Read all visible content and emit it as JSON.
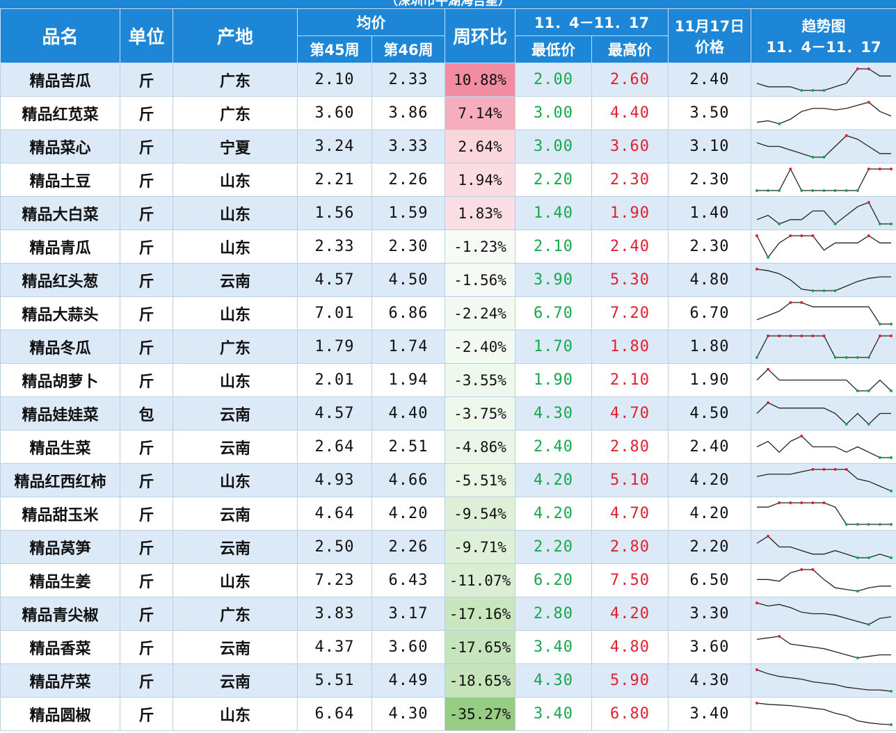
{
  "caption": "（深圳市平湖海吉星）",
  "headers": {
    "name": "品名",
    "unit": "单位",
    "origin": "产地",
    "avg": "均价",
    "week45": "第45周",
    "week46": "第46周",
    "wow": "周环比",
    "range": "11．4－11．17",
    "min": "最低价",
    "max": "最高价",
    "price_line1": "11月17日",
    "price_line2": "价格",
    "trend_line1": "趋势图",
    "trend_line2": "11．4－11．17"
  },
  "colors": {
    "header_bg": "#1e86d6",
    "alt_row": "#dce9f7",
    "low_text": "#13a84a",
    "high_text": "#e0202f",
    "positive_fill": "#f2a6b2",
    "negative_fill": "#a9d39a"
  },
  "rows": [
    {
      "name": "精品苦瓜",
      "unit": "斤",
      "origin": "广东",
      "w45": "2.10",
      "w46": "2.33",
      "wow": "10.88%",
      "wow_value": 10.88,
      "min": "2.00",
      "max": "2.60",
      "price": "2.40",
      "trend": [
        2.2,
        2.1,
        2.1,
        2.1,
        2.0,
        2.0,
        2.0,
        2.1,
        2.2,
        2.6,
        2.6,
        2.4,
        2.4
      ]
    },
    {
      "name": "精品红苋菜",
      "unit": "斤",
      "origin": "广东",
      "w45": "3.60",
      "w46": "3.86",
      "wow": "7.14%",
      "wow_value": 7.14,
      "min": "3.00",
      "max": "4.40",
      "price": "3.50",
      "trend": [
        3.1,
        3.2,
        3.0,
        3.3,
        3.8,
        4.0,
        4.0,
        3.9,
        4.0,
        4.2,
        4.4,
        3.8,
        3.5
      ]
    },
    {
      "name": "精品菜心",
      "unit": "斤",
      "origin": "宁夏",
      "w45": "3.24",
      "w46": "3.33",
      "wow": "2.64%",
      "wow_value": 2.64,
      "min": "3.00",
      "max": "3.60",
      "price": "3.10",
      "trend": [
        3.4,
        3.3,
        3.3,
        3.2,
        3.1,
        3.0,
        3.0,
        3.3,
        3.6,
        3.5,
        3.3,
        3.1,
        3.1
      ]
    },
    {
      "name": "精品土豆",
      "unit": "斤",
      "origin": "山东",
      "w45": "2.21",
      "w46": "2.26",
      "wow": "1.94%",
      "wow_value": 1.94,
      "min": "2.20",
      "max": "2.30",
      "price": "2.30",
      "trend": [
        2.2,
        2.2,
        2.2,
        2.3,
        2.2,
        2.2,
        2.2,
        2.2,
        2.2,
        2.2,
        2.3,
        2.3,
        2.3
      ]
    },
    {
      "name": "精品大白菜",
      "unit": "斤",
      "origin": "山东",
      "w45": "1.56",
      "w46": "1.59",
      "wow": "1.83%",
      "wow_value": 1.83,
      "min": "1.40",
      "max": "1.90",
      "price": "1.40",
      "trend": [
        1.5,
        1.6,
        1.4,
        1.5,
        1.5,
        1.7,
        1.7,
        1.4,
        1.6,
        1.8,
        1.9,
        1.4,
        1.4
      ]
    },
    {
      "name": "精品青瓜",
      "unit": "斤",
      "origin": "山东",
      "w45": "2.33",
      "w46": "2.30",
      "wow": "-1.23%",
      "wow_value": -1.23,
      "min": "2.10",
      "max": "2.40",
      "price": "2.30",
      "trend": [
        2.4,
        2.1,
        2.3,
        2.4,
        2.4,
        2.4,
        2.2,
        2.3,
        2.3,
        2.3,
        2.4,
        2.3,
        2.3
      ]
    },
    {
      "name": "精品红头葱",
      "unit": "斤",
      "origin": "云南",
      "w45": "4.57",
      "w46": "4.50",
      "wow": "-1.56%",
      "wow_value": -1.56,
      "min": "3.90",
      "max": "5.30",
      "price": "4.80",
      "trend": [
        5.3,
        5.2,
        5.0,
        4.6,
        4.0,
        3.9,
        3.9,
        3.9,
        4.2,
        4.5,
        4.7,
        4.8,
        4.8
      ]
    },
    {
      "name": "精品大蒜头",
      "unit": "斤",
      "origin": "山东",
      "w45": "7.01",
      "w46": "6.86",
      "wow": "-2.24%",
      "wow_value": -2.24,
      "min": "6.70",
      "max": "7.20",
      "price": "6.70",
      "trend": [
        6.8,
        6.9,
        7.0,
        7.2,
        7.2,
        7.1,
        7.1,
        7.1,
        7.1,
        7.1,
        7.1,
        6.7,
        6.7
      ]
    },
    {
      "name": "精品冬瓜",
      "unit": "斤",
      "origin": "广东",
      "w45": "1.79",
      "w46": "1.74",
      "wow": "-2.40%",
      "wow_value": -2.4,
      "min": "1.70",
      "max": "1.80",
      "price": "1.80",
      "trend": [
        1.7,
        1.8,
        1.8,
        1.8,
        1.8,
        1.8,
        1.8,
        1.7,
        1.7,
        1.7,
        1.7,
        1.8,
        1.8
      ]
    },
    {
      "name": "精品胡萝卜",
      "unit": "斤",
      "origin": "山东",
      "w45": "2.01",
      "w46": "1.94",
      "wow": "-3.55%",
      "wow_value": -3.55,
      "min": "1.90",
      "max": "2.10",
      "price": "1.90",
      "trend": [
        2.0,
        2.1,
        2.0,
        2.0,
        2.0,
        2.0,
        2.0,
        2.0,
        2.0,
        1.9,
        1.9,
        2.0,
        1.9
      ]
    },
    {
      "name": "精品娃娃菜",
      "unit": "包",
      "origin": "云南",
      "w45": "4.57",
      "w46": "4.40",
      "wow": "-3.75%",
      "wow_value": -3.75,
      "min": "4.30",
      "max": "4.70",
      "price": "4.50",
      "trend": [
        4.5,
        4.7,
        4.6,
        4.6,
        4.6,
        4.6,
        4.6,
        4.5,
        4.3,
        4.5,
        4.3,
        4.5,
        4.5
      ]
    },
    {
      "name": "精品生菜",
      "unit": "斤",
      "origin": "云南",
      "w45": "2.64",
      "w46": "2.51",
      "wow": "-4.86%",
      "wow_value": -4.86,
      "min": "2.40",
      "max": "2.80",
      "price": "2.40",
      "trend": [
        2.6,
        2.7,
        2.5,
        2.7,
        2.8,
        2.6,
        2.6,
        2.6,
        2.5,
        2.6,
        2.5,
        2.4,
        2.4
      ]
    },
    {
      "name": "精品红西红柿",
      "unit": "斤",
      "origin": "山东",
      "w45": "4.93",
      "w46": "4.66",
      "wow": "-5.51%",
      "wow_value": -5.51,
      "min": "4.20",
      "max": "5.10",
      "price": "4.20",
      "trend": [
        4.8,
        4.9,
        4.9,
        4.9,
        5.0,
        5.1,
        5.1,
        5.1,
        5.1,
        4.7,
        4.6,
        4.4,
        4.2
      ]
    },
    {
      "name": "精品甜玉米",
      "unit": "斤",
      "origin": "云南",
      "w45": "4.64",
      "w46": "4.20",
      "wow": "-9.54%",
      "wow_value": -9.54,
      "min": "4.20",
      "max": "4.70",
      "price": "4.20",
      "trend": [
        4.6,
        4.6,
        4.7,
        4.7,
        4.7,
        4.7,
        4.7,
        4.6,
        4.2,
        4.2,
        4.2,
        4.2,
        4.2
      ]
    },
    {
      "name": "精品莴笋",
      "unit": "斤",
      "origin": "云南",
      "w45": "2.50",
      "w46": "2.26",
      "wow": "-9.71%",
      "wow_value": -9.71,
      "min": "2.20",
      "max": "2.80",
      "price": "2.20",
      "trend": [
        2.6,
        2.8,
        2.5,
        2.5,
        2.4,
        2.3,
        2.3,
        2.4,
        2.3,
        2.2,
        2.2,
        2.3,
        2.2
      ]
    },
    {
      "name": "精品生姜",
      "unit": "斤",
      "origin": "山东",
      "w45": "7.23",
      "w46": "6.43",
      "wow": "-11.07%",
      "wow_value": -11.07,
      "min": "6.20",
      "max": "7.50",
      "price": "6.50",
      "trend": [
        6.9,
        6.9,
        6.8,
        7.3,
        7.5,
        7.5,
        6.9,
        6.4,
        6.3,
        6.2,
        6.4,
        6.5,
        6.5
      ]
    },
    {
      "name": "精品青尖椒",
      "unit": "斤",
      "origin": "广东",
      "w45": "3.83",
      "w46": "3.17",
      "wow": "-17.16%",
      "wow_value": -17.16,
      "min": "2.80",
      "max": "4.20",
      "price": "3.30",
      "trend": [
        4.2,
        4.0,
        4.1,
        3.9,
        3.6,
        3.5,
        3.5,
        3.4,
        3.2,
        3.0,
        2.8,
        3.2,
        3.3
      ]
    },
    {
      "name": "精品香菜",
      "unit": "斤",
      "origin": "云南",
      "w45": "4.37",
      "w46": "3.60",
      "wow": "-17.65%",
      "wow_value": -17.65,
      "min": "3.40",
      "max": "4.80",
      "price": "3.60",
      "trend": [
        4.6,
        4.7,
        4.8,
        4.3,
        4.2,
        4.1,
        4.0,
        3.8,
        3.6,
        3.4,
        3.5,
        3.6,
        3.6
      ]
    },
    {
      "name": "精品芹菜",
      "unit": "斤",
      "origin": "云南",
      "w45": "5.51",
      "w46": "4.49",
      "wow": "-18.65%",
      "wow_value": -18.65,
      "min": "4.30",
      "max": "5.90",
      "price": "4.30",
      "trend": [
        5.9,
        5.6,
        5.4,
        5.3,
        5.2,
        5.0,
        4.9,
        4.8,
        4.6,
        4.5,
        4.4,
        4.4,
        4.3
      ]
    },
    {
      "name": "精品圆椒",
      "unit": "斤",
      "origin": "山东",
      "w45": "6.64",
      "w46": "4.30",
      "wow": "-35.27%",
      "wow_value": -35.27,
      "min": "3.40",
      "max": "6.80",
      "price": "3.40",
      "trend": [
        6.8,
        6.6,
        6.5,
        6.4,
        6.2,
        6.0,
        5.8,
        5.2,
        4.8,
        4.0,
        3.7,
        3.5,
        3.4
      ]
    }
  ]
}
